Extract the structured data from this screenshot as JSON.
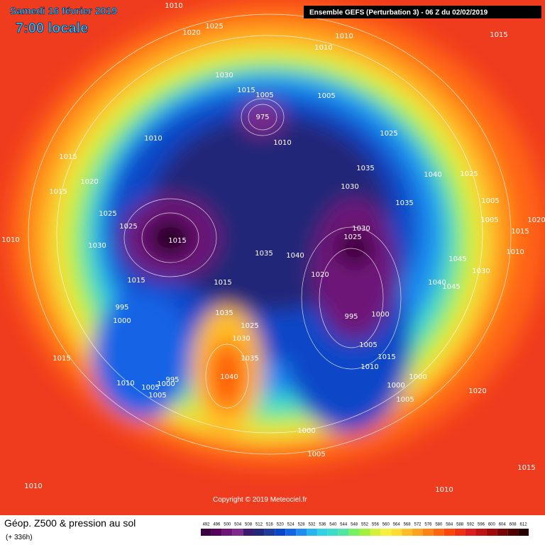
{
  "header": {
    "date": "Samedi 16 février 2019",
    "time": "7:00 locale",
    "run": "Ensemble GEFS  (Perturbation 3)  -  06 Z du 02/02/2019"
  },
  "footer": {
    "title": "Géop. Z500 & pression au sol",
    "lead": "(+ 336h)",
    "copyright": "Copyright © 2019 Meteociel.fr"
  },
  "isobar_labels": [
    "1010",
    "1020",
    "1025",
    "1030",
    "1015",
    "1005",
    "975",
    "1005",
    "1010",
    "1010",
    "1015",
    "1010",
    "1010",
    "1025",
    "1035",
    "1030",
    "1040",
    "1025",
    "1015",
    "1015",
    "1020",
    "1025",
    "1025",
    "1030",
    "1015",
    "1035",
    "1030",
    "1025",
    "1005",
    "1005",
    "1015",
    "1020",
    "1010",
    "1010",
    "1035",
    "1040",
    "1045",
    "1030",
    "1020",
    "1015",
    "1015",
    "1040",
    "1045",
    "995",
    "1000",
    "995",
    "1000",
    "1035",
    "1025",
    "1030",
    "1005",
    "1035",
    "1015",
    "1010",
    "1015",
    "1040",
    "1000",
    "995",
    "1000",
    "1005",
    "1010",
    "1005",
    "1000",
    "1005",
    "1020",
    "1000",
    "1005",
    "1015",
    "1010",
    "1010"
  ],
  "legend": {
    "values": [
      "492",
      "496",
      "500",
      "504",
      "508",
      "512",
      "516",
      "520",
      "524",
      "528",
      "532",
      "536",
      "540",
      "544",
      "548",
      "552",
      "556",
      "560",
      "564",
      "568",
      "572",
      "576",
      "580",
      "584",
      "588",
      "592",
      "596",
      "600",
      "604",
      "608",
      "612"
    ],
    "colors": [
      "#3a0040",
      "#55005a",
      "#6e1478",
      "#7d2a8c",
      "#3a1a6e",
      "#202878",
      "#1e3c9c",
      "#0a46c8",
      "#1464e6",
      "#1e8cf0",
      "#28b4f0",
      "#32d2e6",
      "#3cdcc8",
      "#50e6a0",
      "#78f064",
      "#a0f03c",
      "#d2f03c",
      "#f5f03c",
      "#ffdc32",
      "#ffbe28",
      "#ffa01e",
      "#ff8214",
      "#ff640f",
      "#ff460a",
      "#f03214",
      "#dc1e1e",
      "#be1414",
      "#a00a0a",
      "#780505",
      "#500000",
      "#280000"
    ]
  }
}
